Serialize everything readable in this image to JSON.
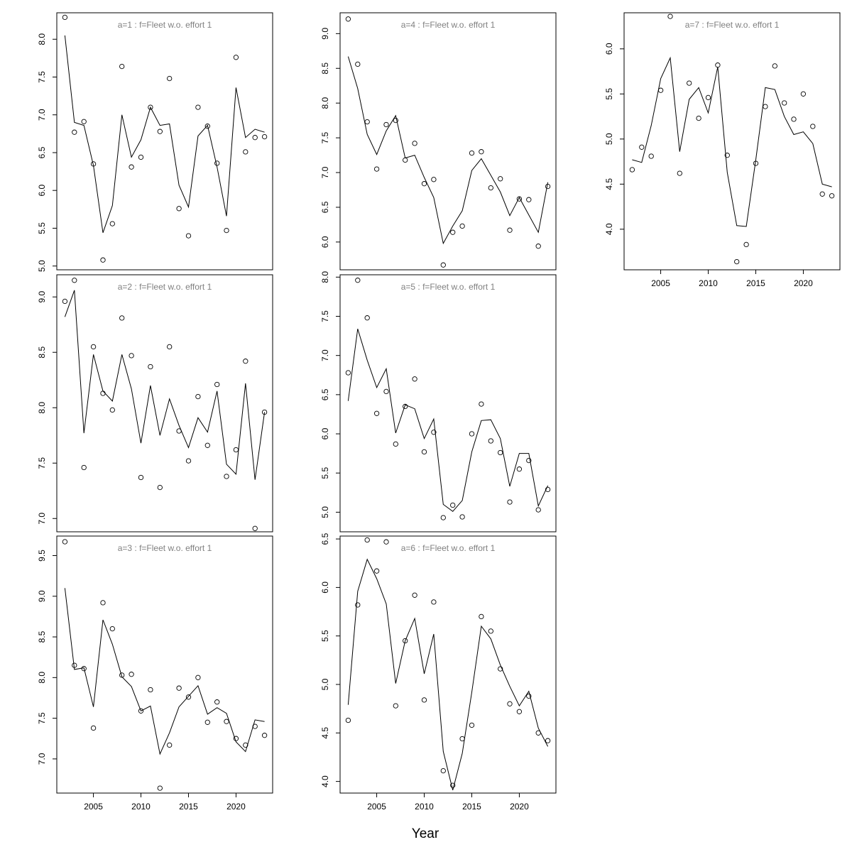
{
  "chart_data": [
    {
      "type": "line",
      "title": "a=1  :  f=Fleet w.o. effort 1",
      "ylim": [
        4.95,
        8.35
      ],
      "yticks": [
        "5.0",
        "5.5",
        "6.0",
        "6.5",
        "7.0",
        "7.5",
        "8.0"
      ],
      "x": [
        2002,
        2003,
        2004,
        2005,
        2006,
        2007,
        2008,
        2009,
        2010,
        2011,
        2012,
        2013,
        2014,
        2015,
        2016,
        2017,
        2018,
        2019,
        2020,
        2021,
        2022,
        2023
      ],
      "series": [
        {
          "kind": "observed",
          "values": [
            8.29,
            6.77,
            6.91,
            6.35,
            5.08,
            5.56,
            7.64,
            6.31,
            6.44,
            7.1,
            6.78,
            7.48,
            5.76,
            5.4,
            7.1,
            6.85,
            6.36,
            5.47,
            7.76,
            6.51,
            6.7,
            6.71
          ]
        },
        {
          "kind": "fitted",
          "values": [
            8.05,
            6.9,
            6.86,
            6.33,
            5.44,
            5.8,
            7.0,
            6.44,
            6.67,
            7.1,
            6.86,
            6.88,
            6.07,
            5.78,
            6.72,
            6.86,
            6.31,
            5.66,
            7.36,
            6.7,
            6.81,
            6.77
          ]
        }
      ]
    },
    {
      "type": "line",
      "title": "a=2  :  f=Fleet w.o. effort 1",
      "ylim": [
        6.88,
        9.2
      ],
      "yticks": [
        "7.0",
        "7.5",
        "8.0",
        "8.5",
        "9.0"
      ],
      "x": [
        2002,
        2003,
        2004,
        2005,
        2006,
        2007,
        2008,
        2009,
        2010,
        2011,
        2012,
        2013,
        2014,
        2015,
        2016,
        2017,
        2018,
        2019,
        2020,
        2021,
        2022,
        2023
      ],
      "series": [
        {
          "kind": "observed",
          "values": [
            8.96,
            9.15,
            7.46,
            8.55,
            8.13,
            7.98,
            8.81,
            8.47,
            7.37,
            8.37,
            7.28,
            8.55,
            7.79,
            7.52,
            8.1,
            7.66,
            8.21,
            7.38,
            7.62,
            8.42,
            6.91,
            7.96
          ]
        },
        {
          "kind": "fitted",
          "values": [
            8.82,
            9.06,
            7.77,
            8.48,
            8.15,
            8.06,
            8.48,
            8.17,
            7.68,
            8.2,
            7.75,
            8.08,
            7.84,
            7.64,
            7.91,
            7.78,
            8.15,
            7.49,
            7.4,
            8.22,
            7.35,
            7.96
          ]
        }
      ]
    },
    {
      "type": "line",
      "title": "a=3  :  f=Fleet w.o. effort 1",
      "ylim": [
        6.58,
        9.74
      ],
      "yticks": [
        "7.0",
        "7.5",
        "8.0",
        "8.5",
        "9.0",
        "9.5"
      ],
      "x": [
        2002,
        2003,
        2004,
        2005,
        2006,
        2007,
        2008,
        2009,
        2010,
        2011,
        2012,
        2013,
        2014,
        2015,
        2016,
        2017,
        2018,
        2019,
        2020,
        2021,
        2022,
        2023
      ],
      "series": [
        {
          "kind": "observed",
          "values": [
            9.67,
            8.15,
            8.11,
            7.38,
            8.92,
            8.6,
            8.03,
            8.04,
            7.59,
            7.85,
            6.64,
            7.17,
            7.87,
            7.76,
            8.0,
            7.45,
            7.7,
            7.46,
            7.25,
            7.17,
            7.4,
            7.29
          ]
        },
        {
          "kind": "fitted",
          "values": [
            9.1,
            8.1,
            8.12,
            7.64,
            8.71,
            8.41,
            8.01,
            7.89,
            7.59,
            7.65,
            7.06,
            7.32,
            7.64,
            7.77,
            7.9,
            7.55,
            7.63,
            7.56,
            7.21,
            7.09,
            7.48,
            7.46
          ]
        }
      ]
    },
    {
      "type": "line",
      "title": "a=4  :  f=Fleet w.o. effort 1",
      "ylim": [
        5.6,
        9.3
      ],
      "yticks": [
        "6.0",
        "6.5",
        "7.0",
        "7.5",
        "8.0",
        "8.5",
        "9.0"
      ],
      "x": [
        2002,
        2003,
        2004,
        2005,
        2006,
        2007,
        2008,
        2009,
        2010,
        2011,
        2012,
        2013,
        2014,
        2015,
        2016,
        2017,
        2018,
        2019,
        2020,
        2021,
        2022,
        2023
      ],
      "series": [
        {
          "kind": "observed",
          "values": [
            9.21,
            8.56,
            7.73,
            7.05,
            7.69,
            7.75,
            7.18,
            7.42,
            6.84,
            6.9,
            5.67,
            6.14,
            6.23,
            7.28,
            7.3,
            6.78,
            6.91,
            6.17,
            6.62,
            6.61,
            5.94,
            6.8
          ]
        },
        {
          "kind": "fitted",
          "values": [
            8.67,
            8.21,
            7.55,
            7.26,
            7.6,
            7.82,
            7.21,
            7.25,
            6.93,
            6.64,
            5.98,
            6.23,
            6.45,
            7.03,
            7.2,
            6.96,
            6.72,
            6.38,
            6.64,
            6.39,
            6.14,
            6.86
          ]
        }
      ]
    },
    {
      "type": "line",
      "title": "a=5  :  f=Fleet w.o. effort 1",
      "ylim": [
        4.75,
        8.03
      ],
      "yticks": [
        "5.0",
        "5.5",
        "6.0",
        "6.5",
        "7.0",
        "7.5",
        "8.0"
      ],
      "x": [
        2002,
        2003,
        2004,
        2005,
        2006,
        2007,
        2008,
        2009,
        2010,
        2011,
        2012,
        2013,
        2014,
        2015,
        2016,
        2017,
        2018,
        2019,
        2020,
        2021,
        2022,
        2023
      ],
      "series": [
        {
          "kind": "observed",
          "values": [
            6.78,
            7.96,
            7.48,
            6.26,
            6.54,
            5.87,
            6.35,
            6.7,
            5.77,
            6.02,
            4.93,
            5.09,
            4.94,
            6.0,
            6.38,
            5.91,
            5.76,
            5.13,
            5.55,
            5.66,
            5.03,
            5.29
          ]
        },
        {
          "kind": "fitted",
          "values": [
            6.42,
            7.34,
            6.94,
            6.59,
            6.83,
            6.01,
            6.37,
            6.32,
            5.94,
            6.19,
            5.1,
            5.01,
            5.15,
            5.77,
            6.17,
            6.18,
            5.94,
            5.33,
            5.75,
            5.75,
            5.08,
            5.34
          ]
        }
      ]
    },
    {
      "type": "line",
      "title": "a=6  :  f=Fleet w.o. effort 1",
      "ylim": [
        3.88,
        6.53
      ],
      "yticks": [
        "4.0",
        "4.5",
        "5.0",
        "5.5",
        "6.0",
        "6.5"
      ],
      "x": [
        2002,
        2003,
        2004,
        2005,
        2006,
        2007,
        2008,
        2009,
        2010,
        2011,
        2012,
        2013,
        2014,
        2015,
        2016,
        2017,
        2018,
        2019,
        2020,
        2021,
        2022,
        2023
      ],
      "series": [
        {
          "kind": "observed",
          "values": [
            4.63,
            5.82,
            6.49,
            6.17,
            6.47,
            4.78,
            5.45,
            5.92,
            4.84,
            5.85,
            4.11,
            3.96,
            4.44,
            4.58,
            5.7,
            5.55,
            5.16,
            4.8,
            4.72,
            4.88,
            4.5,
            4.42
          ]
        },
        {
          "kind": "fitted",
          "values": [
            4.79,
            5.96,
            6.29,
            6.09,
            5.83,
            5.01,
            5.45,
            5.68,
            5.11,
            5.52,
            4.31,
            3.91,
            4.29,
            4.92,
            5.6,
            5.47,
            5.2,
            4.98,
            4.78,
            4.93,
            4.55,
            4.36
          ]
        }
      ]
    },
    {
      "type": "line",
      "title": "a=7  :  f=Fleet w.o. effort 1",
      "ylim": [
        3.55,
        6.4
      ],
      "yticks": [
        "4.0",
        "4.5",
        "5.0",
        "5.5",
        "6.0"
      ],
      "x": [
        2002,
        2003,
        2004,
        2005,
        2006,
        2007,
        2008,
        2009,
        2010,
        2011,
        2012,
        2013,
        2014,
        2015,
        2016,
        2017,
        2018,
        2019,
        2020,
        2021,
        2022,
        2023
      ],
      "series": [
        {
          "kind": "observed",
          "values": [
            4.66,
            4.91,
            4.81,
            5.54,
            6.36,
            4.62,
            5.62,
            5.23,
            5.46,
            5.82,
            4.82,
            3.64,
            3.83,
            4.73,
            5.36,
            5.81,
            5.4,
            5.22,
            5.5,
            5.14,
            4.39,
            4.37
          ]
        },
        {
          "kind": "fitted",
          "values": [
            4.77,
            4.74,
            5.15,
            5.67,
            5.9,
            4.86,
            5.44,
            5.57,
            5.29,
            5.8,
            4.63,
            4.04,
            4.03,
            4.77,
            5.57,
            5.55,
            5.25,
            5.05,
            5.08,
            4.95,
            4.5,
            4.47
          ]
        }
      ]
    }
  ],
  "x_axis": {
    "label": "Year",
    "ticks": [
      "2005",
      "2010",
      "2015",
      "2020"
    ],
    "tick_values": [
      2005,
      2010,
      2015,
      2020
    ],
    "xlim": [
      2001.15,
      2023.85
    ]
  }
}
